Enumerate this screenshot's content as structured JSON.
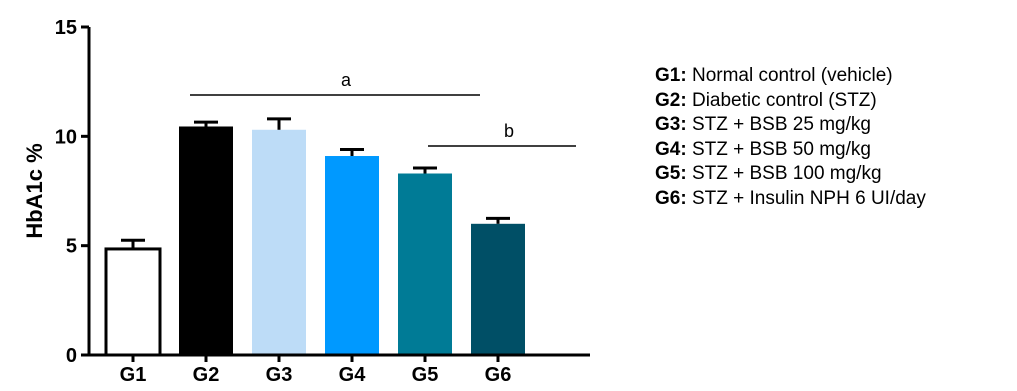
{
  "chart_data": {
    "type": "bar",
    "categories": [
      "G1",
      "G2",
      "G3",
      "G4",
      "G5",
      "G6"
    ],
    "values": [
      4.85,
      10.45,
      10.3,
      9.1,
      8.3,
      6.0
    ],
    "errors": [
      0.4,
      0.2,
      0.5,
      0.3,
      0.25,
      0.25
    ],
    "colors": [
      "#ffffff",
      "#000000",
      "#bddcf7",
      "#0099ff",
      "#007b96",
      "#004f66"
    ],
    "ylabel": "HbA1c %",
    "xlabel": "",
    "ylim": [
      0,
      15
    ],
    "yticks": [
      0,
      5,
      10,
      15
    ],
    "significance": [
      {
        "label": "a",
        "from": "G2",
        "to": "G5"
      },
      {
        "label": "b",
        "from": "G5",
        "to": "G6"
      }
    ]
  },
  "legend": [
    {
      "key": "G1:",
      "text": "Normal control (vehicle)"
    },
    {
      "key": "G2:",
      "text": "Diabetic control (STZ)"
    },
    {
      "key": "G3:",
      "text": "STZ + BSB 25 mg/kg"
    },
    {
      "key": "G4:",
      "text": "STZ + BSB 50 mg/kg"
    },
    {
      "key": "G5:",
      "text": "STZ + BSB 100 mg/kg"
    },
    {
      "key": "G6:",
      "text": "STZ + Insulin NPH 6 UI/day"
    }
  ]
}
